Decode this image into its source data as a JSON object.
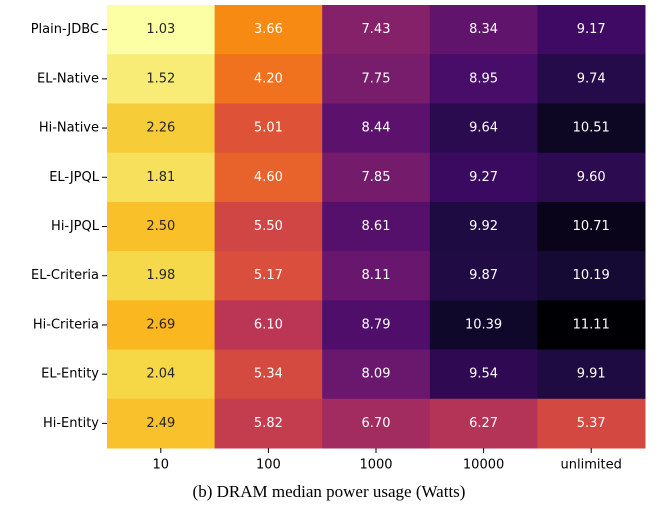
{
  "chart_data": {
    "type": "heatmap",
    "caption": "(b) DRAM median power usage (Watts)",
    "colormap": "inferno",
    "reverse_colormap": true,
    "x_categories": [
      "10",
      "100",
      "1000",
      "10000",
      "unlimited"
    ],
    "y_categories": [
      "Plain-JDBC",
      "EL-Native",
      "Hi-Native",
      "EL-JPQL",
      "Hi-JPQL",
      "EL-Criteria",
      "Hi-Criteria",
      "EL-Entity",
      "Hi-Entity"
    ],
    "values": [
      [
        1.03,
        3.66,
        7.43,
        8.34,
        9.17
      ],
      [
        1.52,
        4.2,
        7.75,
        8.95,
        9.74
      ],
      [
        2.26,
        5.01,
        8.44,
        9.64,
        10.51
      ],
      [
        1.81,
        4.6,
        7.85,
        9.27,
        9.6
      ],
      [
        2.5,
        5.5,
        8.61,
        9.92,
        10.71
      ],
      [
        1.98,
        5.17,
        8.11,
        9.87,
        10.19
      ],
      [
        2.69,
        6.1,
        8.79,
        10.39,
        11.11
      ],
      [
        2.04,
        5.34,
        8.09,
        9.54,
        9.91
      ],
      [
        2.49,
        5.82,
        6.7,
        6.27,
        5.37
      ]
    ],
    "value_labels": [
      [
        "1.03",
        "3.66",
        "7.43",
        "8.34",
        "9.17"
      ],
      [
        "1.52",
        "4.20",
        "7.75",
        "8.95",
        "9.74"
      ],
      [
        "2.26",
        "5.01",
        "8.44",
        "9.64",
        "10.51"
      ],
      [
        "1.81",
        "4.60",
        "7.85",
        "9.27",
        "9.60"
      ],
      [
        "2.50",
        "5.50",
        "8.61",
        "9.92",
        "10.71"
      ],
      [
        "1.98",
        "5.17",
        "8.11",
        "9.87",
        "10.19"
      ],
      [
        "2.69",
        "6.10",
        "8.79",
        "10.39",
        "11.11"
      ],
      [
        "2.04",
        "5.34",
        "8.09",
        "9.54",
        "9.91"
      ],
      [
        "2.49",
        "5.82",
        "6.70",
        "6.27",
        "5.37"
      ]
    ]
  }
}
